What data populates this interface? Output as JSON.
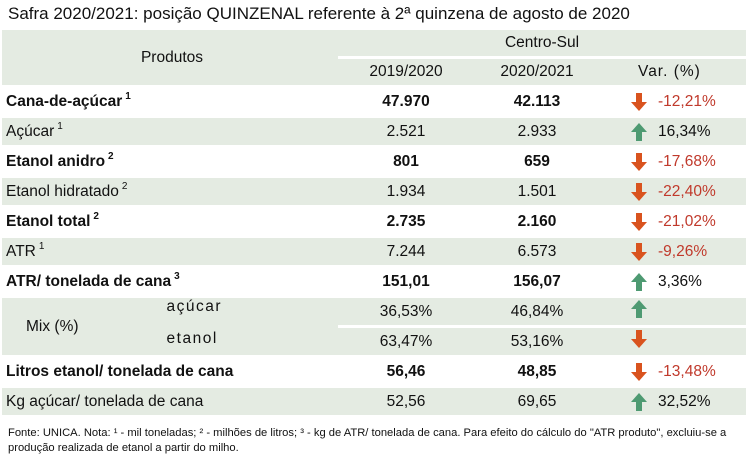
{
  "title": "Safra 2020/2021: posição QUINZENAL referente à 2ª quinzena de agosto de 2020",
  "header": {
    "products": "Produtos",
    "region": "Centro-Sul",
    "col1": "2019/2020",
    "col2": "2020/2021",
    "col3": "Var. (%)"
  },
  "rows": [
    {
      "label": "Cana-de-açúcar",
      "sup": "1",
      "v1": "47.970",
      "v2": "42.113",
      "var": "-12,21%",
      "dir": "down",
      "bold": true
    },
    {
      "label": "Açúcar",
      "sup": "1",
      "v1": "2.521",
      "v2": "2.933",
      "var": "16,34%",
      "dir": "up",
      "bold": false
    },
    {
      "label": "Etanol anidro",
      "sup": "2",
      "v1": "801",
      "v2": "659",
      "var": "-17,68%",
      "dir": "down",
      "bold": true
    },
    {
      "label": "Etanol hidratado",
      "sup": "2",
      "v1": "1.934",
      "v2": "1.501",
      "var": "-22,40%",
      "dir": "down",
      "bold": false
    },
    {
      "label": "Etanol total",
      "sup": "2",
      "v1": "2.735",
      "v2": "2.160",
      "var": "-21,02%",
      "dir": "down",
      "bold": true
    },
    {
      "label": "ATR",
      "sup": "1",
      "v1": "7.244",
      "v2": "6.573",
      "var": "-9,26%",
      "dir": "down",
      "bold": false
    },
    {
      "label": "ATR/ tonelada de cana",
      "sup": "3",
      "v1": "151,01",
      "v2": "156,07",
      "var": "3,36%",
      "dir": "up",
      "bold": true
    }
  ],
  "mix": {
    "label": "Mix (%)",
    "sugar": {
      "label": "açúcar",
      "v1": "36,53%",
      "v2": "46,84%",
      "dir": "up"
    },
    "ethanol": {
      "label": "etanol",
      "v1": "63,47%",
      "v2": "53,16%",
      "dir": "down"
    }
  },
  "tail": [
    {
      "label": "Litros etanol/ tonelada de cana",
      "v1": "56,46",
      "v2": "48,85",
      "var": "-13,48%",
      "dir": "down",
      "bold": true
    },
    {
      "label": "Kg açúcar/ tonelada de cana",
      "v1": "52,56",
      "v2": "69,65",
      "var": "32,52%",
      "dir": "up",
      "bold": false
    }
  ],
  "footnote": "Fonte: UNICA. Nota: ¹ - mil toneladas; ² - milhões de litros; ³ - kg de ATR/ tonelada de cana. Para efeito do cálculo do \"ATR produto\", excluiu-se a produção realizada de etanol a partir do milho.",
  "colors": {
    "up": "#4e9a72",
    "down": "#d9531e",
    "negative_text": "#c0392b",
    "shade": "#e4ebe2"
  },
  "icons": {
    "up": "arrow-up-icon",
    "down": "arrow-down-icon"
  }
}
